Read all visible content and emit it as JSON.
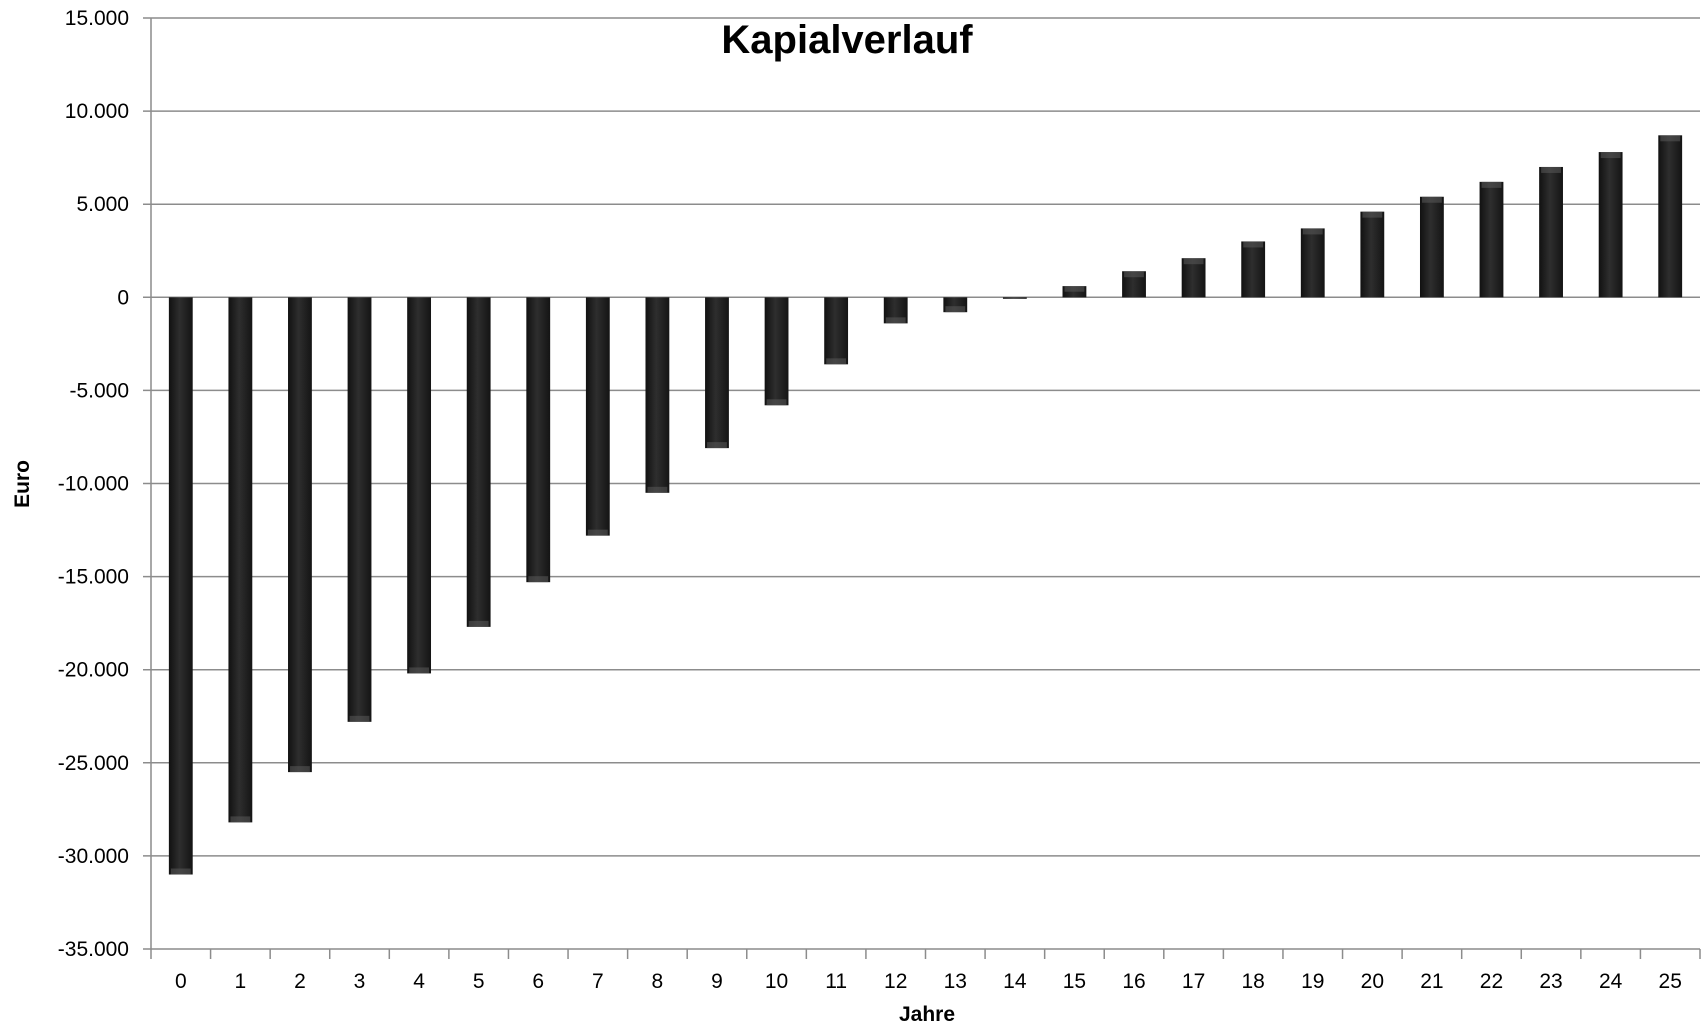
{
  "chart_data": {
    "type": "bar",
    "title": "Kapialverlauf",
    "xlabel": "Jahre",
    "ylabel": "Euro",
    "categories": [
      "0",
      "1",
      "2",
      "3",
      "4",
      "5",
      "6",
      "7",
      "8",
      "9",
      "10",
      "11",
      "12",
      "13",
      "14",
      "15",
      "16",
      "17",
      "18",
      "19",
      "20",
      "21",
      "22",
      "23",
      "24",
      "25"
    ],
    "series": [
      {
        "values": [
          -31000,
          -28200,
          -25500,
          -22800,
          -20200,
          -17700,
          -15300,
          -12800,
          -10500,
          -8100,
          -5800,
          -3600,
          -1400,
          -800,
          0,
          600,
          1400,
          2100,
          3000,
          3700,
          4600,
          5400,
          6200,
          7000,
          7800,
          8700
        ]
      }
    ],
    "ylim": [
      -35000,
      15000
    ],
    "yticks": [
      15000,
      10000,
      5000,
      0,
      -5000,
      -10000,
      -15000,
      -20000,
      -25000,
      -30000,
      -35000
    ],
    "ytick_labels": [
      "15.000",
      "10.000",
      "5.000",
      "0",
      "-5.000",
      "-10.000",
      "-15.000",
      "-20.000",
      "-25.000",
      "-30.000",
      "-35.000"
    ],
    "grid": true,
    "legend": false,
    "colors": {
      "bar": "#262626",
      "bar_highlight": "#5a5a5a",
      "grid": "#8c8c8c",
      "axis": "#8c8c8c",
      "text": "#000000"
    }
  }
}
